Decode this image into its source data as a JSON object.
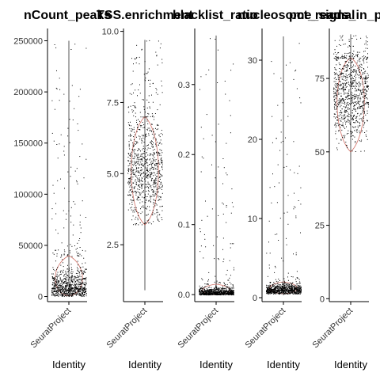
{
  "chart_data": [
    {
      "type": "violin-jitter",
      "title": "nCount_peaks",
      "category": "SeuratProject",
      "xlabel": "Identity",
      "ylim": [
        -5000,
        262000
      ],
      "yticks": [
        0,
        50000,
        100000,
        150000,
        200000,
        250000
      ],
      "yticklabels": [
        "0",
        "50000",
        "100000",
        "150000",
        "200000",
        "250000"
      ],
      "distribution": {
        "median": 9000,
        "core_low": 500,
        "core_high": 40000,
        "range": [
          0,
          250000
        ]
      }
    },
    {
      "type": "violin-jitter",
      "title": "TSS.enrichment",
      "category": "SeuratProject",
      "xlabel": "Identity",
      "ylim": [
        0.5,
        10.1
      ],
      "yticks": [
        2.5,
        5.0,
        7.5,
        10.0
      ],
      "yticklabels": [
        "2.5",
        "5.0",
        "7.5",
        "10.0"
      ],
      "distribution": {
        "median": 5.1,
        "core_low": 3.2,
        "core_high": 7.0,
        "range": [
          0.9,
          9.7
        ]
      }
    },
    {
      "type": "violin-jitter",
      "title": "blacklist_ratio",
      "category": "SeuratProject",
      "xlabel": "Identity",
      "ylim": [
        -0.01,
        0.38
      ],
      "yticks": [
        0.0,
        0.1,
        0.2,
        0.3
      ],
      "yticklabels": [
        "0.0",
        "0.1",
        "0.2",
        "0.3"
      ],
      "distribution": {
        "median": 0.003,
        "core_low": 0.0,
        "core_high": 0.015,
        "range": [
          0.0,
          0.37
        ]
      }
    },
    {
      "type": "violin-jitter",
      "title": "nucleosome_signal",
      "category": "SeuratProject",
      "xlabel": "Identity",
      "ylim": [
        -0.5,
        34
      ],
      "yticks": [
        0,
        10,
        20,
        30
      ],
      "yticklabels": [
        "0",
        "10",
        "20",
        "30"
      ],
      "distribution": {
        "median": 1.0,
        "core_low": 0.5,
        "core_high": 2.0,
        "range": [
          0.3,
          33
        ]
      }
    },
    {
      "type": "violin-jitter",
      "title": "pct_reads_in_peaks",
      "category": "SeuratProject",
      "xlabel": "Identity",
      "ylim": [
        -1,
        92
      ],
      "yticks": [
        0,
        25,
        50,
        75
      ],
      "yticklabels": [
        "0",
        "25",
        "50",
        "75"
      ],
      "distribution": {
        "median": 70,
        "core_low": 50,
        "core_high": 82,
        "range": [
          3,
          90
        ]
      }
    }
  ],
  "colors": {
    "points": "#000000",
    "violin_outline": "#c0392b",
    "axis": "#000000"
  }
}
